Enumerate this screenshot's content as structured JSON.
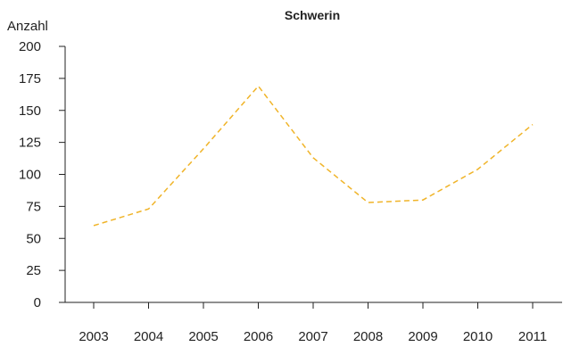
{
  "chart_data": {
    "type": "line",
    "title": "Schwerin",
    "xlabel": "",
    "ylabel": "Anzahl",
    "ylim": [
      0,
      200
    ],
    "yticks": [
      0,
      25,
      50,
      75,
      100,
      125,
      150,
      175,
      200
    ],
    "grid": false,
    "categories": [
      "2003",
      "2004",
      "2005",
      "2006",
      "2007",
      "2008",
      "2009",
      "2010",
      "2011"
    ],
    "series": [
      {
        "name": "",
        "values": [
          60,
          73,
          120,
          169,
          113,
          78,
          80,
          104,
          139
        ],
        "color": "#f0b429",
        "style": "dashed"
      }
    ]
  }
}
